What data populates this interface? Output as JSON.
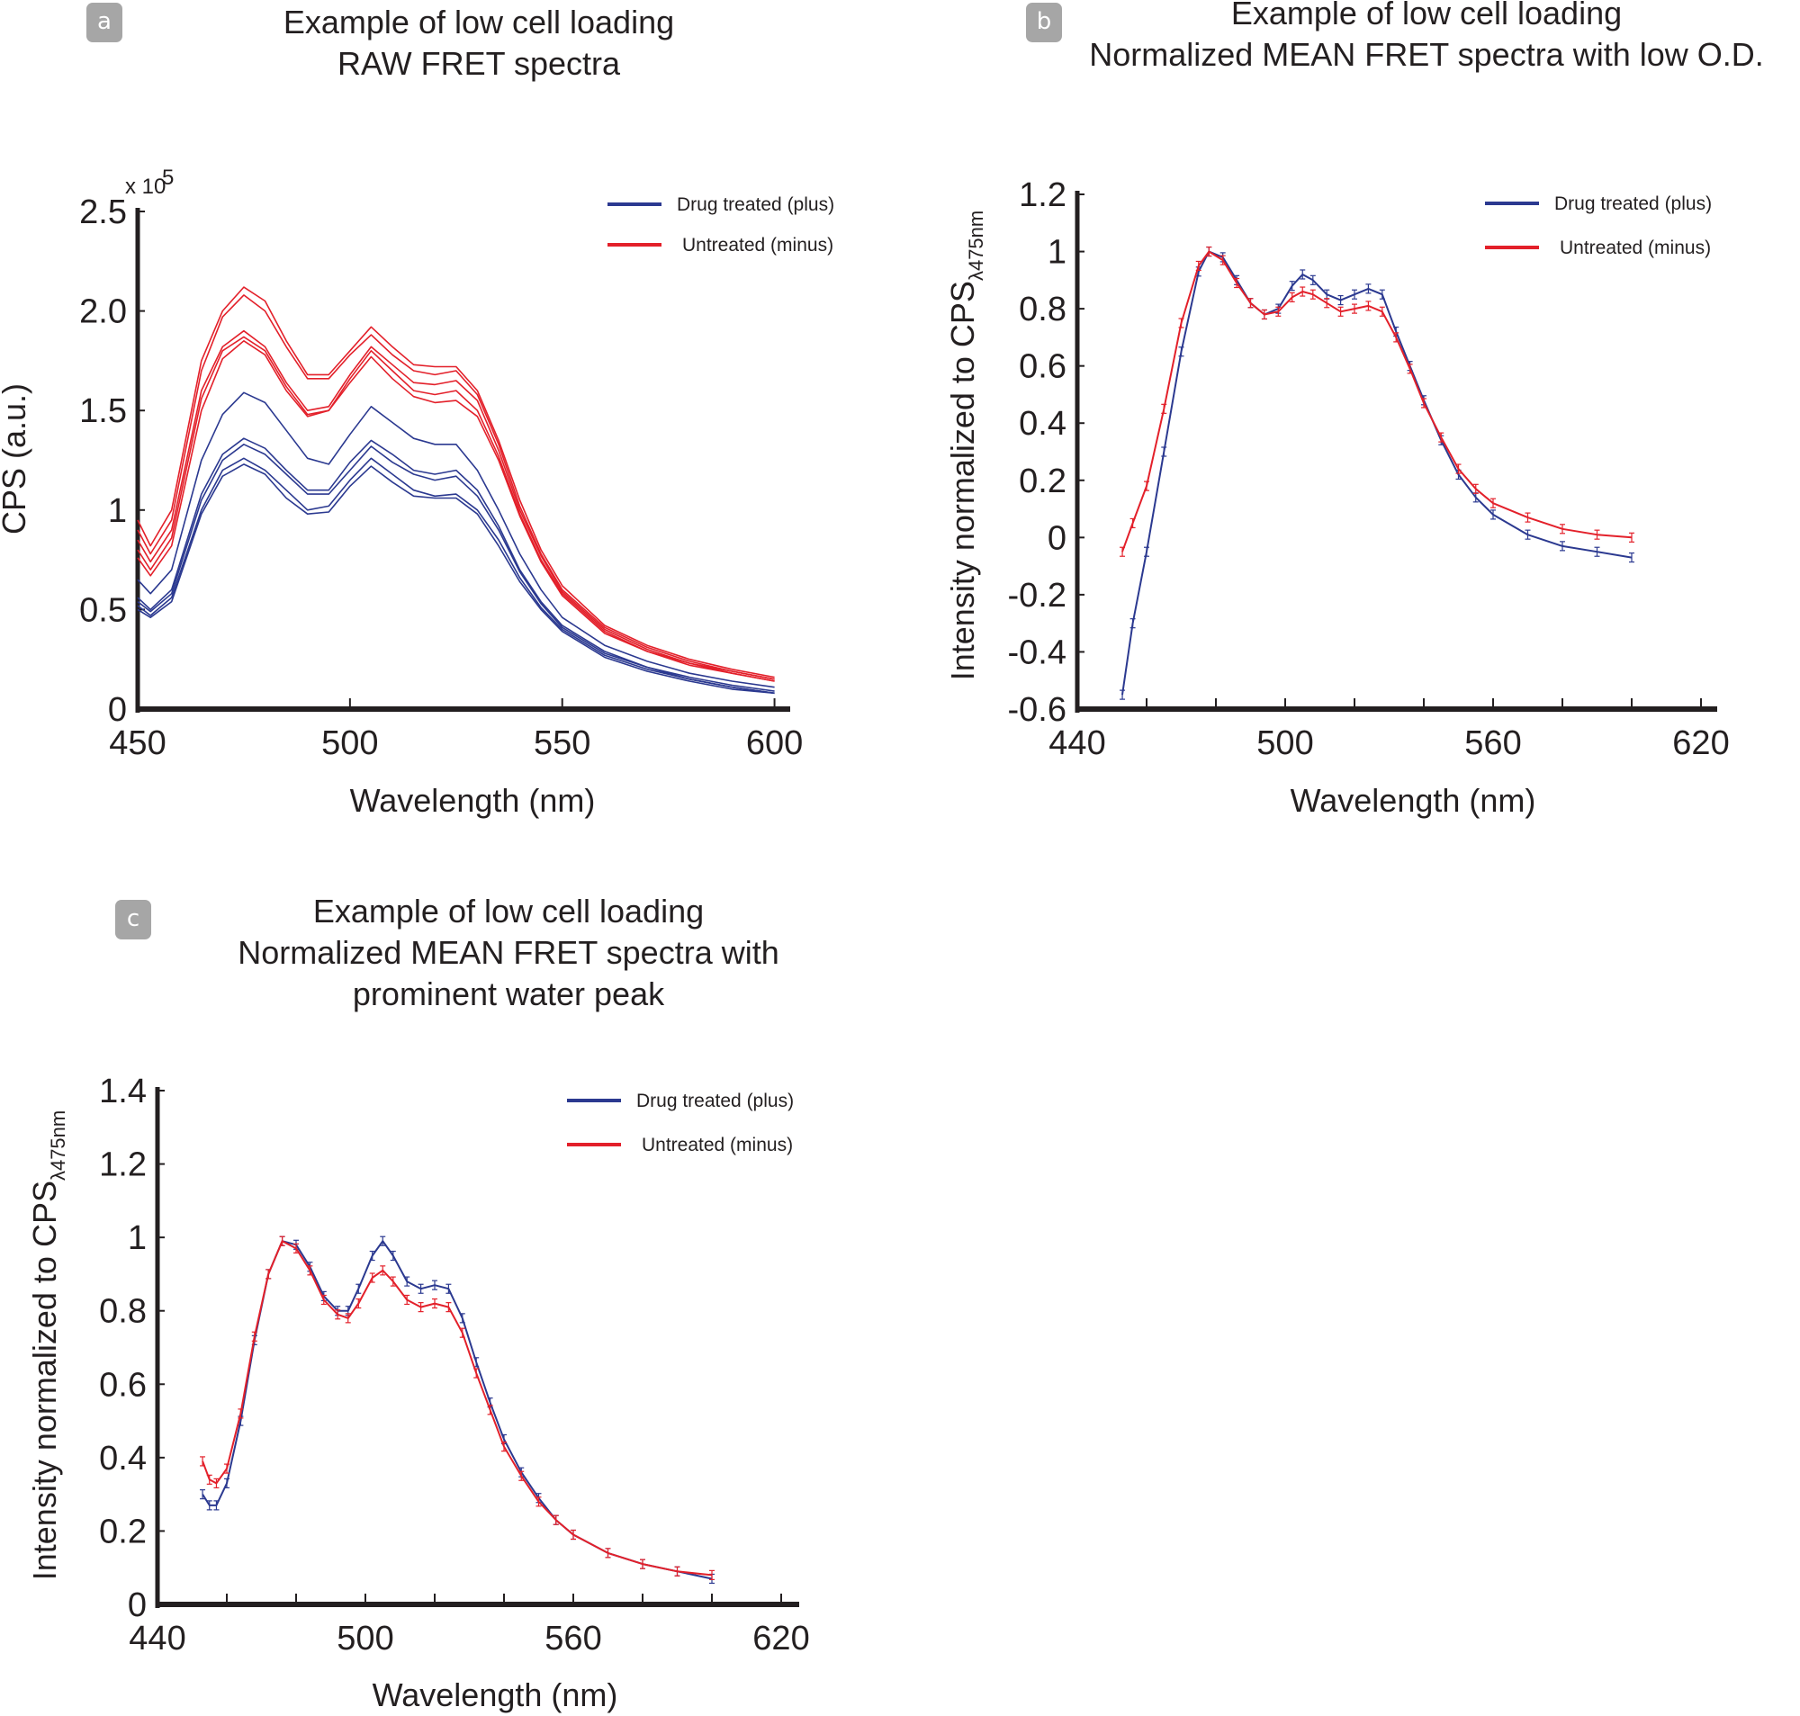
{
  "panels": [
    {
      "id": "a",
      "badge": "a",
      "title_lines": [
        "Example of low cell loading",
        "RAW FRET spectra"
      ]
    },
    {
      "id": "b",
      "badge": "b",
      "title_lines": [
        "Example of low cell loading",
        "Normalized MEAN FRET spectra with low O.D."
      ]
    },
    {
      "id": "c",
      "badge": "c",
      "title_lines": [
        "Example of low cell loading",
        "Normalized MEAN FRET spectra with",
        "prominent water peak"
      ]
    }
  ],
  "colors": {
    "drug_treated": "#2b3990",
    "untreated": "#e3202a",
    "axis": "#231f20",
    "badge": "#a6a6a6"
  },
  "chart_data": [
    {
      "panel": "a",
      "type": "line",
      "title": "Example of low cell loading RAW FRET spectra",
      "xlabel": "Wavelength (nm)",
      "ylabel": "CPS (a.u.)",
      "y_multiplier": "x 10^5",
      "y_multiplier_base": "x 10",
      "y_multiplier_exp": "5",
      "xlim": [
        450,
        602
      ],
      "ylim": [
        0,
        2.5
      ],
      "xticks": [
        450,
        500,
        550,
        600
      ],
      "xtick_labels": [
        "450",
        "500",
        "550",
        "600"
      ],
      "yticks": [
        0,
        0.5,
        1,
        1.5,
        2.0,
        2.5
      ],
      "ytick_labels": [
        "0",
        "0.5",
        "1",
        "1.5",
        "2.0",
        "2.5"
      ],
      "grid": false,
      "legend": {
        "position": "top-right",
        "entries": [
          {
            "label": "Drug treated (plus)",
            "color_key": "drug_treated"
          },
          {
            "label": "Untreated (minus)",
            "color_key": "untreated"
          }
        ]
      },
      "x": [
        450,
        453,
        458,
        465,
        470,
        475,
        480,
        485,
        490,
        495,
        500,
        505,
        510,
        515,
        520,
        525,
        530,
        535,
        540,
        545,
        550,
        560,
        570,
        580,
        590,
        600
      ],
      "series": [
        {
          "name": "Untreated (minus)",
          "color_key": "untreated",
          "values": [
            0.95,
            0.82,
            1.0,
            1.75,
            2.0,
            2.12,
            2.05,
            1.85,
            1.68,
            1.68,
            1.8,
            1.92,
            1.82,
            1.73,
            1.72,
            1.72,
            1.6,
            1.35,
            1.05,
            0.8,
            0.62,
            0.42,
            0.32,
            0.25,
            0.2,
            0.16
          ]
        },
        {
          "name": "Untreated (minus)",
          "color_key": "untreated",
          "values": [
            0.9,
            0.78,
            0.95,
            1.7,
            1.97,
            2.08,
            2.0,
            1.82,
            1.66,
            1.66,
            1.78,
            1.88,
            1.78,
            1.7,
            1.68,
            1.7,
            1.58,
            1.33,
            1.02,
            0.78,
            0.6,
            0.41,
            0.31,
            0.24,
            0.19,
            0.15
          ]
        },
        {
          "name": "Untreated (minus)",
          "color_key": "untreated",
          "values": [
            0.85,
            0.74,
            0.9,
            1.6,
            1.82,
            1.9,
            1.82,
            1.64,
            1.5,
            1.52,
            1.68,
            1.82,
            1.73,
            1.64,
            1.63,
            1.65,
            1.55,
            1.3,
            1.0,
            0.77,
            0.59,
            0.4,
            0.3,
            0.23,
            0.19,
            0.15
          ]
        },
        {
          "name": "Untreated (minus)",
          "color_key": "untreated",
          "values": [
            0.8,
            0.7,
            0.86,
            1.56,
            1.8,
            1.87,
            1.8,
            1.62,
            1.48,
            1.5,
            1.66,
            1.8,
            1.7,
            1.6,
            1.58,
            1.6,
            1.5,
            1.27,
            0.98,
            0.75,
            0.58,
            0.39,
            0.29,
            0.23,
            0.18,
            0.14
          ]
        },
        {
          "name": "Untreated (minus)",
          "color_key": "untreated",
          "values": [
            0.76,
            0.67,
            0.82,
            1.5,
            1.76,
            1.85,
            1.78,
            1.6,
            1.47,
            1.5,
            1.64,
            1.77,
            1.66,
            1.57,
            1.54,
            1.55,
            1.47,
            1.25,
            0.97,
            0.74,
            0.57,
            0.38,
            0.29,
            0.22,
            0.18,
            0.14
          ]
        },
        {
          "name": "Drug treated (plus)",
          "color_key": "drug_treated",
          "values": [
            0.65,
            0.58,
            0.7,
            1.25,
            1.48,
            1.59,
            1.54,
            1.4,
            1.26,
            1.23,
            1.38,
            1.52,
            1.44,
            1.36,
            1.33,
            1.33,
            1.2,
            1.0,
            0.78,
            0.6,
            0.46,
            0.32,
            0.24,
            0.18,
            0.14,
            0.11
          ]
        },
        {
          "name": "Drug treated (plus)",
          "color_key": "drug_treated",
          "values": [
            0.56,
            0.5,
            0.6,
            1.08,
            1.28,
            1.36,
            1.31,
            1.2,
            1.1,
            1.1,
            1.24,
            1.35,
            1.28,
            1.2,
            1.18,
            1.2,
            1.1,
            0.92,
            0.7,
            0.54,
            0.42,
            0.29,
            0.21,
            0.16,
            0.12,
            0.09
          ]
        },
        {
          "name": "Drug treated (plus)",
          "color_key": "drug_treated",
          "values": [
            0.54,
            0.49,
            0.58,
            1.05,
            1.25,
            1.33,
            1.28,
            1.18,
            1.08,
            1.08,
            1.2,
            1.32,
            1.24,
            1.18,
            1.15,
            1.17,
            1.07,
            0.9,
            0.69,
            0.53,
            0.41,
            0.28,
            0.21,
            0.15,
            0.11,
            0.08
          ]
        },
        {
          "name": "Drug treated (plus)",
          "color_key": "drug_treated",
          "values": [
            0.52,
            0.47,
            0.56,
            1.0,
            1.2,
            1.26,
            1.2,
            1.1,
            1.0,
            1.02,
            1.15,
            1.26,
            1.18,
            1.1,
            1.07,
            1.08,
            1.0,
            0.85,
            0.66,
            0.51,
            0.4,
            0.27,
            0.2,
            0.15,
            0.11,
            0.08
          ]
        },
        {
          "name": "Drug treated (plus)",
          "color_key": "drug_treated",
          "values": [
            0.5,
            0.46,
            0.54,
            0.98,
            1.17,
            1.23,
            1.18,
            1.06,
            0.98,
            0.99,
            1.12,
            1.22,
            1.14,
            1.07,
            1.06,
            1.06,
            0.98,
            0.82,
            0.64,
            0.5,
            0.39,
            0.26,
            0.19,
            0.14,
            0.1,
            0.08
          ]
        }
      ]
    },
    {
      "panel": "b",
      "type": "line",
      "title": "Example of low cell loading Normalized MEAN FRET spectra with low O.D.",
      "xlabel": "Wavelength (nm)",
      "ylabel_main": "Intensity normalized to CPS",
      "ylabel_sub": "λ475nm",
      "xlim": [
        440,
        620
      ],
      "ylim": [
        -0.6,
        1.2
      ],
      "xticks": [
        440,
        500,
        560,
        620
      ],
      "xtick_labels": [
        "440",
        "500",
        "560",
        "620"
      ],
      "xminor_step": 20,
      "yticks": [
        -0.6,
        -0.4,
        -0.2,
        0,
        0.2,
        0.4,
        0.6,
        0.8,
        1,
        1.2
      ],
      "ytick_labels": [
        "-0.6",
        "-0.4",
        "-0.2",
        "0",
        "0.2",
        "0.4",
        "0.6",
        "0.8",
        "1",
        "1.2"
      ],
      "grid": false,
      "error_bars": true,
      "legend": {
        "position": "top-right",
        "entries": [
          {
            "label": "Drug treated (plus)",
            "color_key": "drug_treated"
          },
          {
            "label": "Untreated (minus)",
            "color_key": "untreated"
          }
        ]
      },
      "x": [
        453,
        456,
        460,
        465,
        470,
        475,
        478,
        482,
        486,
        490,
        494,
        498,
        502,
        505,
        508,
        512,
        516,
        520,
        524,
        528,
        532,
        536,
        540,
        545,
        550,
        555,
        560,
        570,
        580,
        590,
        600
      ],
      "series": [
        {
          "name": "Drug treated (plus)",
          "color_key": "drug_treated",
          "values": [
            -0.55,
            -0.3,
            -0.05,
            0.3,
            0.65,
            0.93,
            1.0,
            0.98,
            0.9,
            0.82,
            0.78,
            0.8,
            0.88,
            0.92,
            0.9,
            0.85,
            0.83,
            0.85,
            0.87,
            0.85,
            0.72,
            0.6,
            0.48,
            0.34,
            0.22,
            0.14,
            0.08,
            0.01,
            -0.03,
            -0.05,
            -0.07
          ]
        },
        {
          "name": "Untreated (minus)",
          "color_key": "untreated",
          "values": [
            -0.05,
            0.05,
            0.18,
            0.45,
            0.75,
            0.95,
            1.0,
            0.97,
            0.89,
            0.82,
            0.78,
            0.79,
            0.84,
            0.86,
            0.85,
            0.82,
            0.79,
            0.8,
            0.81,
            0.79,
            0.7,
            0.59,
            0.47,
            0.35,
            0.24,
            0.17,
            0.12,
            0.07,
            0.03,
            0.01,
            0.0
          ]
        }
      ]
    },
    {
      "panel": "c",
      "type": "line",
      "title": "Example of low cell loading Normalized MEAN FRET spectra with prominent water peak",
      "xlabel": "Wavelength (nm)",
      "ylabel_main": "Intensity normalized to CPS",
      "ylabel_sub": "λ475nm",
      "xlim": [
        440,
        620
      ],
      "ylim": [
        0,
        1.4
      ],
      "xticks": [
        440,
        500,
        560,
        620
      ],
      "xtick_labels": [
        "440",
        "500",
        "560",
        "620"
      ],
      "xminor_step": 20,
      "yticks": [
        0,
        0.2,
        0.4,
        0.6,
        0.8,
        1,
        1.2,
        1.4
      ],
      "ytick_labels": [
        "0",
        "0.2",
        "0.4",
        "0.6",
        "0.8",
        "1",
        "1.2",
        "1.4"
      ],
      "grid": false,
      "error_bars": true,
      "legend": {
        "position": "top-right",
        "entries": [
          {
            "label": "Drug treated (plus)",
            "color_key": "drug_treated"
          },
          {
            "label": "Untreated (minus)",
            "color_key": "untreated"
          }
        ]
      },
      "x": [
        453,
        455,
        457,
        460,
        464,
        468,
        472,
        476,
        480,
        484,
        488,
        492,
        495,
        498,
        502,
        505,
        508,
        512,
        516,
        520,
        524,
        528,
        532,
        536,
        540,
        545,
        550,
        555,
        560,
        570,
        580,
        590,
        600
      ],
      "series": [
        {
          "name": "Drug treated (plus)",
          "color_key": "drug_treated",
          "values": [
            0.3,
            0.27,
            0.27,
            0.33,
            0.5,
            0.72,
            0.9,
            0.99,
            0.98,
            0.92,
            0.84,
            0.8,
            0.8,
            0.86,
            0.95,
            0.99,
            0.95,
            0.88,
            0.86,
            0.87,
            0.86,
            0.78,
            0.66,
            0.55,
            0.45,
            0.36,
            0.29,
            0.23,
            0.19,
            0.14,
            0.11,
            0.09,
            0.07
          ]
        },
        {
          "name": "Untreated (minus)",
          "color_key": "untreated",
          "values": [
            0.39,
            0.34,
            0.33,
            0.37,
            0.52,
            0.73,
            0.9,
            0.99,
            0.97,
            0.91,
            0.83,
            0.79,
            0.78,
            0.82,
            0.89,
            0.91,
            0.88,
            0.83,
            0.81,
            0.82,
            0.81,
            0.74,
            0.63,
            0.53,
            0.43,
            0.35,
            0.28,
            0.23,
            0.19,
            0.14,
            0.11,
            0.09,
            0.08
          ]
        }
      ]
    }
  ]
}
